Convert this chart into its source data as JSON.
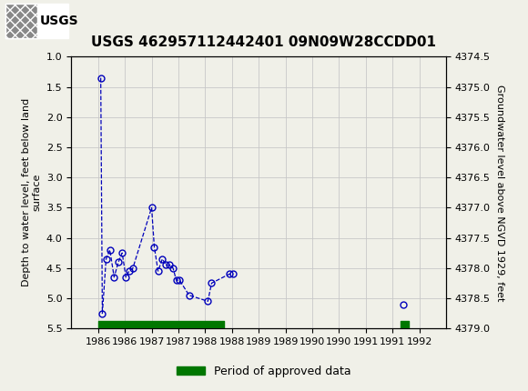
{
  "title": "USGS 462957112442401 09N09W28CCDD01",
  "ylabel_left": "Depth to water level, feet below land\nsurface",
  "ylabel_right": "Groundwater level above NGVD 1929, feet",
  "xlim": [
    1985.5,
    1992.5
  ],
  "ylim_left": [
    1.0,
    5.5
  ],
  "ylim_right": [
    4374.5,
    4379.0
  ],
  "yticks_left": [
    1.0,
    1.5,
    2.0,
    2.5,
    3.0,
    3.5,
    4.0,
    4.5,
    5.0,
    5.5
  ],
  "yticks_right": [
    4374.5,
    4375.0,
    4375.5,
    4376.0,
    4376.5,
    4377.0,
    4377.5,
    4378.0,
    4378.5,
    4379.0
  ],
  "xticks": [
    1986,
    1986.5,
    1987,
    1987.5,
    1988,
    1988.5,
    1989,
    1989.5,
    1990,
    1990.5,
    1991,
    1991.5,
    1992
  ],
  "xtick_labels": [
    "1986",
    "1986",
    "1987",
    "1987",
    "1988",
    "1988",
    "1989",
    "1989",
    "1990",
    "1990",
    "1991",
    "1991",
    "1992"
  ],
  "segments": [
    {
      "x": [
        1986.05,
        1986.08,
        1986.15,
        1986.22,
        1986.3,
        1986.38,
        1986.45,
        1986.52,
        1986.58,
        1986.65,
        1987.0,
        1987.05,
        1987.12,
        1987.2,
        1987.27,
        1987.33,
        1987.4,
        1987.46,
        1987.52,
        1987.7,
        1988.05,
        1988.12,
        1988.45,
        1988.52
      ],
      "y": [
        1.35,
        5.25,
        4.35,
        4.2,
        4.65,
        4.4,
        4.25,
        4.65,
        4.55,
        4.5,
        3.5,
        4.15,
        4.55,
        4.35,
        4.45,
        4.45,
        4.5,
        4.7,
        4.7,
        4.95,
        5.05,
        4.75,
        4.6,
        4.6
      ]
    },
    {
      "x": [
        1991.7
      ],
      "y": [
        5.1
      ]
    }
  ],
  "approved_bars": [
    {
      "x_start": 1986.0,
      "x_end": 1988.35
    },
    {
      "x_start": 1991.65,
      "x_end": 1991.8
    }
  ],
  "line_color": "#0000bb",
  "marker_color": "#0000bb",
  "approved_color": "#007700",
  "background_color": "#f0f0e8",
  "plot_bg_color": "#f0f0e8",
  "header_bg_color": "#006060",
  "grid_color": "#c8c8c8",
  "title_fontsize": 11,
  "axis_label_fontsize": 8,
  "tick_fontsize": 8
}
